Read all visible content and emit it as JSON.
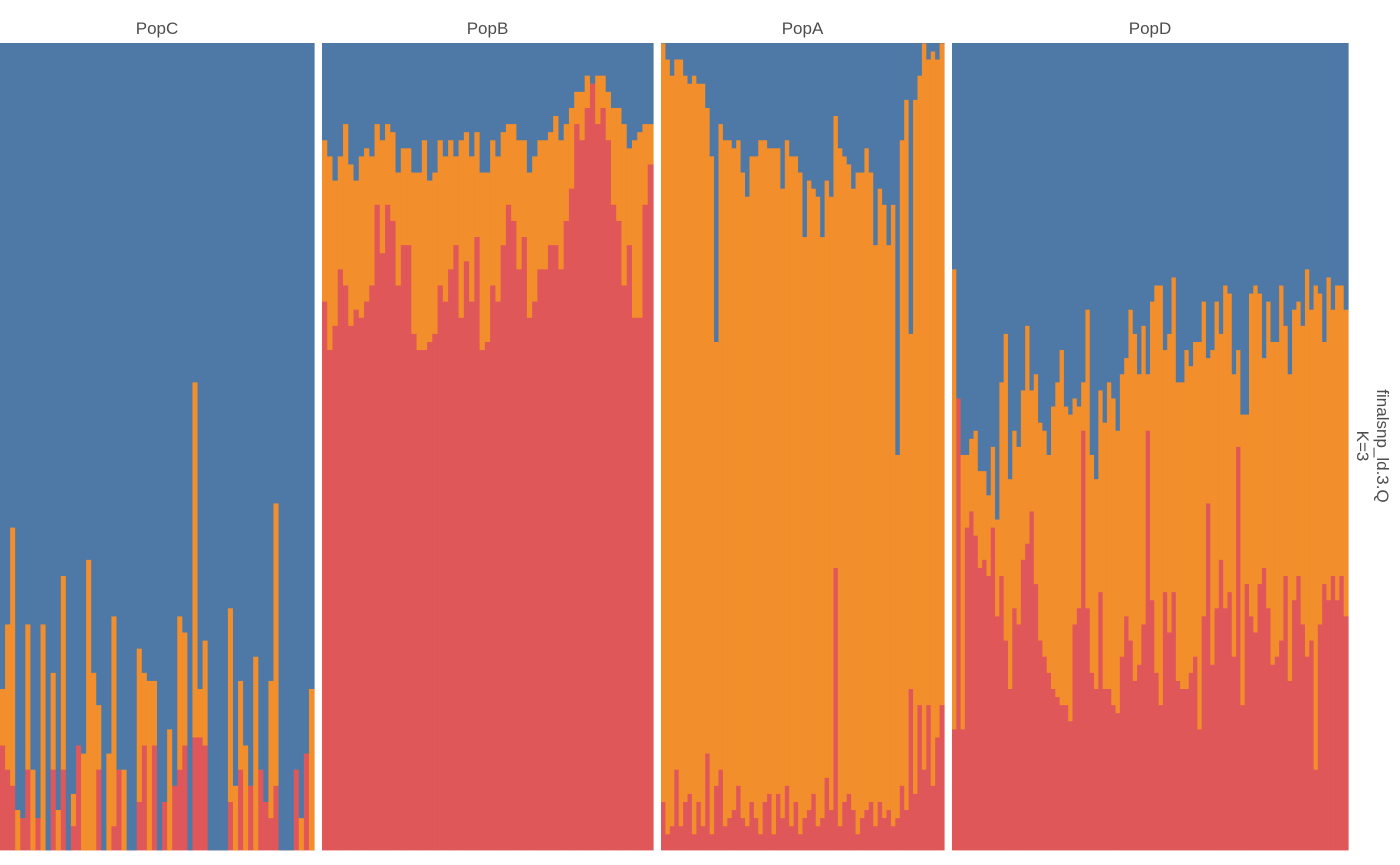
{
  "chart_data": {
    "type": "bar",
    "stacked": true,
    "title": "",
    "xlabel": "",
    "ylabel": "",
    "ylim": [
      0,
      1
    ],
    "grid": false,
    "legend": "none",
    "strip_label": [
      "finalsnp_ld.3.Q",
      "K=3"
    ],
    "colors": {
      "cluster1": "#e05759",
      "cluster2": "#f28e2b",
      "cluster3": "#4e79a7"
    },
    "panels": [
      {
        "name": "PopC",
        "series": [
          {
            "name": "cluster1",
            "values": [
              0.13,
              0.1,
              0.08,
              0.0,
              0.04,
              0.1,
              0.0,
              0.04,
              0.0,
              0.0,
              0.1,
              0.0,
              0.1,
              0.0,
              0.03,
              0.13,
              0.0,
              0.0,
              0.0,
              0.1,
              0.0,
              0.0,
              0.03,
              0.1,
              0.0,
              0.0,
              0.0,
              0.06,
              0.13,
              0.0,
              0.13,
              0.0,
              0.06,
              0.0,
              0.08,
              0.1,
              0.13,
              0.0,
              0.14,
              0.14,
              0.13,
              0.0,
              0.0,
              0.0,
              0.0,
              0.06,
              0.0,
              0.1,
              0.0,
              0.08,
              0.0,
              0.1,
              0.06,
              0.04,
              0.08,
              0.0,
              0.0,
              0.0,
              0.1,
              0.0,
              0.12,
              0.0
            ]
          },
          {
            "name": "cluster2",
            "values": [
              0.07,
              0.18,
              0.32,
              0.05,
              0.0,
              0.18,
              0.1,
              0.0,
              0.28,
              0.0,
              0.12,
              0.05,
              0.24,
              0.0,
              0.04,
              0.0,
              0.12,
              0.36,
              0.22,
              0.08,
              0.0,
              0.12,
              0.26,
              0.0,
              0.1,
              0.0,
              0.0,
              0.19,
              0.09,
              0.21,
              0.08,
              0.0,
              0.0,
              0.15,
              0.0,
              0.19,
              0.14,
              0.0,
              0.44,
              0.06,
              0.13,
              0.0,
              0.0,
              0.0,
              0.0,
              0.24,
              0.08,
              0.11,
              0.13,
              0.0,
              0.24,
              0.0,
              0.0,
              0.17,
              0.35,
              0.0,
              0.0,
              0.0,
              0.0,
              0.04,
              0.0,
              0.2
            ]
          },
          {
            "name": "cluster3",
            "values": [
              0.8,
              0.72,
              0.6,
              0.95,
              0.96,
              0.72,
              0.9,
              0.96,
              0.72,
              1.0,
              0.78,
              0.95,
              0.66,
              1.0,
              0.93,
              0.87,
              0.88,
              0.64,
              0.78,
              0.82,
              1.0,
              0.88,
              0.71,
              0.9,
              0.9,
              1.0,
              1.0,
              0.75,
              0.78,
              0.79,
              0.79,
              1.0,
              0.94,
              0.85,
              0.92,
              0.71,
              0.73,
              1.0,
              0.42,
              0.8,
              0.74,
              1.0,
              1.0,
              1.0,
              1.0,
              0.7,
              0.92,
              0.79,
              0.87,
              0.92,
              0.76,
              0.9,
              0.94,
              0.79,
              0.57,
              1.0,
              1.0,
              1.0,
              0.9,
              0.96,
              0.88,
              0.8
            ]
          }
        ]
      },
      {
        "name": "PopB",
        "series": [
          {
            "name": "cluster1",
            "values": [
              0.68,
              0.62,
              0.65,
              0.72,
              0.7,
              0.65,
              0.67,
              0.66,
              0.68,
              0.7,
              0.8,
              0.74,
              0.8,
              0.78,
              0.7,
              0.75,
              0.75,
              0.64,
              0.62,
              0.62,
              0.63,
              0.64,
              0.7,
              0.68,
              0.72,
              0.75,
              0.66,
              0.73,
              0.68,
              0.76,
              0.62,
              0.63,
              0.7,
              0.68,
              0.75,
              0.8,
              0.78,
              0.72,
              0.76,
              0.66,
              0.68,
              0.72,
              0.72,
              0.75,
              0.75,
              0.72,
              0.78,
              0.82,
              0.9,
              0.88,
              0.92,
              0.95,
              0.9,
              0.92,
              0.88,
              0.8,
              0.78,
              0.7,
              0.75,
              0.66,
              0.66,
              0.8,
              0.85
            ]
          },
          {
            "name": "cluster2",
            "values": [
              0.2,
              0.24,
              0.18,
              0.14,
              0.2,
              0.2,
              0.16,
              0.2,
              0.19,
              0.16,
              0.1,
              0.14,
              0.1,
              0.11,
              0.14,
              0.12,
              0.12,
              0.2,
              0.22,
              0.26,
              0.2,
              0.2,
              0.18,
              0.18,
              0.16,
              0.11,
              0.22,
              0.16,
              0.18,
              0.13,
              0.22,
              0.21,
              0.18,
              0.18,
              0.14,
              0.1,
              0.12,
              0.16,
              0.12,
              0.18,
              0.18,
              0.16,
              0.16,
              0.14,
              0.16,
              0.16,
              0.12,
              0.1,
              0.04,
              0.06,
              0.04,
              0.0,
              0.06,
              0.04,
              0.06,
              0.12,
              0.14,
              0.2,
              0.12,
              0.22,
              0.23,
              0.1,
              0.05
            ]
          },
          {
            "name": "cluster3",
            "values": [
              0.12,
              0.14,
              0.17,
              0.14,
              0.1,
              0.15,
              0.17,
              0.14,
              0.13,
              0.14,
              0.1,
              0.12,
              0.1,
              0.11,
              0.16,
              0.13,
              0.13,
              0.16,
              0.16,
              0.12,
              0.17,
              0.16,
              0.12,
              0.14,
              0.12,
              0.14,
              0.12,
              0.11,
              0.14,
              0.11,
              0.16,
              0.16,
              0.12,
              0.14,
              0.11,
              0.1,
              0.1,
              0.12,
              0.12,
              0.16,
              0.14,
              0.12,
              0.12,
              0.11,
              0.09,
              0.12,
              0.1,
              0.08,
              0.06,
              0.06,
              0.04,
              0.05,
              0.04,
              0.04,
              0.06,
              0.08,
              0.08,
              0.1,
              0.13,
              0.12,
              0.11,
              0.1,
              0.1
            ]
          }
        ]
      },
      {
        "name": "PopA",
        "series": [
          {
            "name": "cluster1",
            "values": [
              0.06,
              0.02,
              0.03,
              0.1,
              0.03,
              0.06,
              0.07,
              0.02,
              0.06,
              0.03,
              0.12,
              0.02,
              0.08,
              0.1,
              0.03,
              0.04,
              0.05,
              0.08,
              0.04,
              0.03,
              0.06,
              0.04,
              0.02,
              0.06,
              0.07,
              0.02,
              0.07,
              0.04,
              0.08,
              0.03,
              0.06,
              0.02,
              0.04,
              0.05,
              0.07,
              0.03,
              0.04,
              0.09,
              0.05,
              0.35,
              0.03,
              0.06,
              0.07,
              0.05,
              0.02,
              0.04,
              0.05,
              0.06,
              0.03,
              0.06,
              0.04,
              0.05,
              0.03,
              0.04,
              0.08,
              0.05,
              0.2,
              0.07,
              0.18,
              0.1,
              0.18,
              0.08,
              0.14,
              0.18
            ]
          },
          {
            "name": "cluster2",
            "values": [
              0.94,
              0.96,
              0.93,
              0.88,
              0.95,
              0.9,
              0.88,
              0.94,
              0.89,
              0.92,
              0.8,
              0.84,
              0.55,
              0.8,
              0.85,
              0.84,
              0.82,
              0.8,
              0.8,
              0.78,
              0.8,
              0.82,
              0.86,
              0.82,
              0.8,
              0.85,
              0.8,
              0.78,
              0.8,
              0.83,
              0.8,
              0.82,
              0.72,
              0.78,
              0.75,
              0.78,
              0.72,
              0.74,
              0.76,
              0.56,
              0.84,
              0.8,
              0.78,
              0.77,
              0.82,
              0.8,
              0.82,
              0.78,
              0.72,
              0.76,
              0.76,
              0.7,
              0.77,
              0.45,
              0.8,
              0.88,
              0.44,
              0.86,
              0.78,
              0.9,
              0.8,
              0.91,
              0.84,
              0.82
            ]
          },
          {
            "name": "cluster3",
            "values": [
              0.0,
              0.02,
              0.04,
              0.02,
              0.02,
              0.04,
              0.05,
              0.04,
              0.05,
              0.05,
              0.08,
              0.14,
              0.37,
              0.1,
              0.12,
              0.12,
              0.13,
              0.12,
              0.16,
              0.19,
              0.14,
              0.14,
              0.12,
              0.12,
              0.13,
              0.13,
              0.13,
              0.18,
              0.12,
              0.14,
              0.14,
              0.16,
              0.24,
              0.17,
              0.18,
              0.19,
              0.24,
              0.17,
              0.19,
              0.09,
              0.13,
              0.14,
              0.15,
              0.18,
              0.16,
              0.16,
              0.13,
              0.16,
              0.25,
              0.18,
              0.2,
              0.25,
              0.2,
              0.51,
              0.12,
              0.07,
              0.36,
              0.07,
              0.04,
              0.0,
              0.02,
              0.01,
              0.02,
              0.0
            ]
          }
        ]
      },
      {
        "name": "PopD",
        "series": [
          {
            "name": "cluster1",
            "values": [
              0.15,
              0.56,
              0.15,
              0.4,
              0.42,
              0.39,
              0.35,
              0.36,
              0.34,
              0.4,
              0.29,
              0.34,
              0.26,
              0.2,
              0.3,
              0.28,
              0.36,
              0.38,
              0.42,
              0.33,
              0.26,
              0.24,
              0.22,
              0.2,
              0.19,
              0.18,
              0.18,
              0.16,
              0.28,
              0.3,
              0.52,
              0.3,
              0.22,
              0.2,
              0.32,
              0.2,
              0.2,
              0.18,
              0.17,
              0.24,
              0.29,
              0.26,
              0.21,
              0.23,
              0.28,
              0.52,
              0.31,
              0.22,
              0.18,
              0.32,
              0.27,
              0.32,
              0.21,
              0.2,
              0.2,
              0.22,
              0.24,
              0.15,
              0.29,
              0.43,
              0.23,
              0.3,
              0.36,
              0.3,
              0.32,
              0.24,
              0.5,
              0.18,
              0.33,
              0.29,
              0.27,
              0.33,
              0.35,
              0.3,
              0.23,
              0.24,
              0.26,
              0.34,
              0.21,
              0.31,
              0.34,
              0.28,
              0.24,
              0.26,
              0.1,
              0.28,
              0.33,
              0.31,
              0.34,
              0.31,
              0.34,
              0.29
            ]
          },
          {
            "name": "cluster2",
            "values": [
              0.57,
              0.0,
              0.34,
              0.09,
              0.09,
              0.13,
              0.12,
              0.11,
              0.1,
              0.1,
              0.12,
              0.24,
              0.38,
              0.26,
              0.22,
              0.22,
              0.21,
              0.27,
              0.15,
              0.26,
              0.27,
              0.28,
              0.27,
              0.35,
              0.39,
              0.44,
              0.37,
              0.38,
              0.28,
              0.25,
              0.06,
              0.37,
              0.27,
              0.26,
              0.25,
              0.33,
              0.38,
              0.38,
              0.35,
              0.35,
              0.32,
              0.41,
              0.43,
              0.36,
              0.37,
              0.07,
              0.37,
              0.48,
              0.52,
              0.3,
              0.37,
              0.39,
              0.37,
              0.38,
              0.42,
              0.38,
              0.39,
              0.48,
              0.39,
              0.18,
              0.39,
              0.38,
              0.28,
              0.4,
              0.37,
              0.35,
              0.12,
              0.36,
              0.21,
              0.4,
              0.43,
              0.36,
              0.26,
              0.38,
              0.4,
              0.39,
              0.44,
              0.31,
              0.38,
              0.36,
              0.34,
              0.37,
              0.48,
              0.41,
              0.6,
              0.41,
              0.3,
              0.4,
              0.33,
              0.39,
              0.36,
              0.38
            ]
          },
          {
            "name": "cluster3",
            "values": [
              0.28,
              0.44,
              0.51,
              0.51,
              0.49,
              0.48,
              0.53,
              0.53,
              0.56,
              0.5,
              0.59,
              0.42,
              0.36,
              0.54,
              0.48,
              0.5,
              0.43,
              0.35,
              0.43,
              0.41,
              0.47,
              0.48,
              0.51,
              0.45,
              0.42,
              0.38,
              0.45,
              0.46,
              0.44,
              0.45,
              0.42,
              0.33,
              0.51,
              0.54,
              0.43,
              0.47,
              0.42,
              0.44,
              0.48,
              0.41,
              0.39,
              0.33,
              0.36,
              0.41,
              0.35,
              0.41,
              0.32,
              0.3,
              0.3,
              0.38,
              0.36,
              0.29,
              0.42,
              0.42,
              0.38,
              0.4,
              0.37,
              0.37,
              0.32,
              0.39,
              0.38,
              0.32,
              0.36,
              0.3,
              0.31,
              0.41,
              0.38,
              0.46,
              0.46,
              0.31,
              0.3,
              0.31,
              0.39,
              0.32,
              0.37,
              0.37,
              0.3,
              0.35,
              0.41,
              0.33,
              0.32,
              0.35,
              0.28,
              0.33,
              0.3,
              0.31,
              0.37,
              0.29,
              0.33,
              0.3,
              0.3,
              0.33
            ]
          }
        ]
      }
    ]
  }
}
